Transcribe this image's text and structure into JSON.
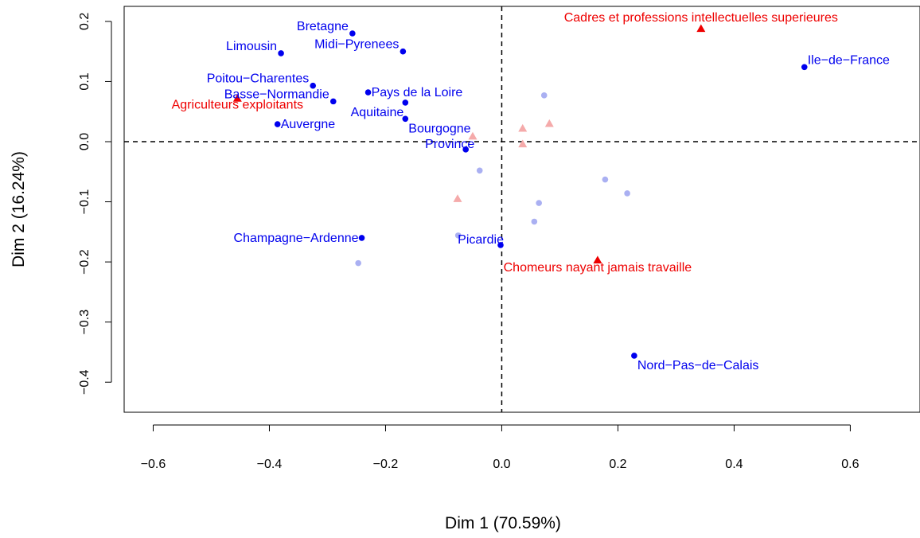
{
  "chart_data": {
    "type": "scatter",
    "title": "",
    "xlabel": "Dim 1 (70.59%)",
    "ylabel": "Dim 2 (16.24%)",
    "xlim": [
      -0.65,
      0.72
    ],
    "ylim": [
      -0.45,
      0.225
    ],
    "x_ticks": [
      -0.6,
      -0.4,
      -0.2,
      0.0,
      0.2,
      0.4,
      0.6
    ],
    "x_tick_labels": [
      "−0.6",
      "−0.4",
      "−0.2",
      "0.0",
      "0.2",
      "0.4",
      "0.6"
    ],
    "y_ticks": [
      0.2,
      0.1,
      0.0,
      -0.1,
      -0.2,
      -0.3,
      -0.4
    ],
    "y_tick_labels": [
      "0.2",
      "0.1",
      "0.0",
      "−0.1",
      "−0.2",
      "−0.3",
      "−0.4"
    ],
    "reference_lines": {
      "x": 0,
      "y": 0,
      "style": "dashed"
    },
    "grid": false,
    "legend": "none",
    "colors": {
      "rows": "#0000ee",
      "columns": "#ee0000",
      "rows_supplementary": "#aab0f2",
      "columns_supplementary": "#f5aaaa",
      "axis": "#000000"
    },
    "series": [
      {
        "marker": "circle",
        "color": "#0000ee",
        "points": [
          {
            "label": "Bretagne",
            "x": -0.257,
            "y": 0.18,
            "anchor": "end",
            "dx": -5,
            "dy": -4
          },
          {
            "label": "Midi−Pyrenees",
            "x": -0.17,
            "y": 0.15,
            "anchor": "end",
            "dx": -5,
            "dy": -4
          },
          {
            "label": "Limousin",
            "x": -0.38,
            "y": 0.147,
            "anchor": "end",
            "dx": -5,
            "dy": -4
          },
          {
            "label": "Poitou−Charentes",
            "x": -0.325,
            "y": 0.093,
            "anchor": "end",
            "dx": -5,
            "dy": -4
          },
          {
            "label": "Basse−Normandie",
            "x": -0.29,
            "y": 0.067,
            "anchor": "end",
            "dx": -5,
            "dy": -4
          },
          {
            "label": "Pays de la Loire",
            "x": -0.23,
            "y": 0.082,
            "anchor": "start",
            "dx": 4,
            "dy": 5
          },
          {
            "label": "Aquitaine",
            "x": -0.166,
            "y": 0.065,
            "anchor": "end",
            "dx": -2,
            "dy": 17
          },
          {
            "label": "Bourgogne",
            "x": -0.166,
            "y": 0.038,
            "anchor": "start",
            "dx": 4,
            "dy": 17
          },
          {
            "label": "Auvergne",
            "x": -0.386,
            "y": 0.029,
            "anchor": "start",
            "dx": 4,
            "dy": 5
          },
          {
            "label": "Province",
            "x": -0.062,
            "y": -0.013,
            "anchor": "middle",
            "dx": -20,
            "dy": -2
          },
          {
            "label": "Champagne−Ardenne",
            "x": -0.241,
            "y": -0.16,
            "anchor": "end",
            "dx": -4,
            "dy": 5
          },
          {
            "label": "Picardie",
            "x": -0.002,
            "y": -0.172,
            "anchor": "end",
            "dx": 4,
            "dy": -2
          },
          {
            "label": "Ile−de−France",
            "x": 0.521,
            "y": 0.124,
            "anchor": "start",
            "dx": 4,
            "dy": -4
          },
          {
            "label": "Nord−Pas−de−Calais",
            "x": 0.228,
            "y": -0.356,
            "anchor": "start",
            "dx": 4,
            "dy": 17
          }
        ]
      },
      {
        "marker": "triangle",
        "color": "#ee0000",
        "points": [
          {
            "label": "Cadres et professions intellectuelles superieures",
            "x": 0.343,
            "y": 0.188,
            "anchor": "middle",
            "dx": 0,
            "dy": -9
          },
          {
            "label": "Agriculteurs exploitants",
            "x": -0.455,
            "y": 0.072,
            "anchor": "middle",
            "dx": 0,
            "dy": 13
          },
          {
            "label": "Chomeurs nayant jamais travaille",
            "x": 0.165,
            "y": -0.197,
            "anchor": "middle",
            "dx": 0,
            "dy": 14
          }
        ]
      },
      {
        "marker": "circle",
        "color": "#aab0f2",
        "points": [
          {
            "x": 0.073,
            "y": 0.077
          },
          {
            "x": -0.038,
            "y": -0.048
          },
          {
            "x": 0.178,
            "y": -0.063
          },
          {
            "x": 0.216,
            "y": -0.086
          },
          {
            "x": 0.064,
            "y": -0.102
          },
          {
            "x": 0.056,
            "y": -0.133
          },
          {
            "x": -0.075,
            "y": -0.156
          },
          {
            "x": -0.247,
            "y": -0.202
          }
        ]
      },
      {
        "marker": "triangle",
        "color": "#f5aaaa",
        "points": [
          {
            "x": 0.082,
            "y": 0.03
          },
          {
            "x": 0.036,
            "y": 0.022
          },
          {
            "x": -0.05,
            "y": 0.009
          },
          {
            "x": 0.036,
            "y": -0.004
          },
          {
            "x": -0.076,
            "y": -0.095
          }
        ]
      }
    ]
  }
}
